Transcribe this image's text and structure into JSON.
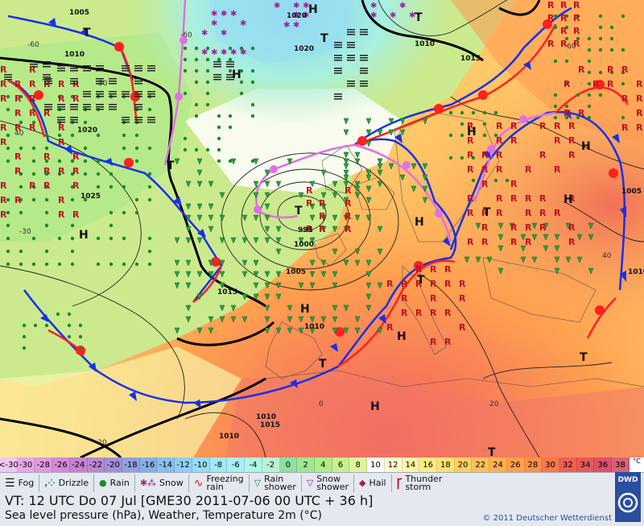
{
  "map": {
    "pressure_labels": [
      {
        "text": "1005"
      },
      {
        "text": "1010"
      },
      {
        "text": "1020"
      },
      {
        "text": "1025"
      },
      {
        "text": "1020"
      },
      {
        "text": "1020"
      },
      {
        "text": "1010"
      },
      {
        "text": "1015"
      },
      {
        "text": "1015"
      },
      {
        "text": "995"
      },
      {
        "text": "1000"
      },
      {
        "text": "1005"
      },
      {
        "text": "1010"
      },
      {
        "text": "1005"
      },
      {
        "text": "1010"
      },
      {
        "text": "1015"
      },
      {
        "text": "1010"
      },
      {
        "text": "1010"
      }
    ],
    "temp_labels": [
      "-60",
      "50",
      "40",
      "-30",
      "-20",
      "0",
      "20",
      "40",
      "60",
      "-60"
    ],
    "highs": [
      "H",
      "H",
      "H",
      "H",
      "H",
      "H",
      "H",
      "H",
      "H",
      "H"
    ],
    "lows": [
      "T",
      "T",
      "T",
      "T",
      "T",
      "T",
      "T",
      "T",
      "T",
      "T"
    ]
  },
  "scale": {
    "unit": "°C",
    "cells": [
      {
        "label": "<-30",
        "color": "#f0c8f0"
      },
      {
        "label": "-30",
        "color": "#e8a8e8"
      },
      {
        "label": "-28",
        "color": "#e098e0"
      },
      {
        "label": "-26",
        "color": "#d888d8"
      },
      {
        "label": "-24",
        "color": "#c880d0"
      },
      {
        "label": "-22",
        "color": "#b888d0"
      },
      {
        "label": "-20",
        "color": "#a090d8"
      },
      {
        "label": "-18",
        "color": "#90a0e0"
      },
      {
        "label": "-16",
        "color": "#88b0e8"
      },
      {
        "label": "-14",
        "color": "#88c0f0"
      },
      {
        "label": "-12",
        "color": "#90d0f4"
      },
      {
        "label": "-10",
        "color": "#98dcf8"
      },
      {
        "label": "-8",
        "color": "#a0e8f8"
      },
      {
        "label": "-6",
        "color": "#a8f0f0"
      },
      {
        "label": "-4",
        "color": "#b0f4e4"
      },
      {
        "label": "-2",
        "color": "#b8f4d4"
      },
      {
        "label": "0",
        "color": "#90e0a0"
      },
      {
        "label": "2",
        "color": "#a0e890"
      },
      {
        "label": "4",
        "color": "#b0ec88"
      },
      {
        "label": "6",
        "color": "#c8f090"
      },
      {
        "label": "8",
        "color": "#e0f4a0"
      },
      {
        "label": "10",
        "color": "#ffffff"
      },
      {
        "label": "12",
        "color": "#fffcd0"
      },
      {
        "label": "14",
        "color": "#fff4a8"
      },
      {
        "label": "16",
        "color": "#ffec88"
      },
      {
        "label": "18",
        "color": "#ffe070"
      },
      {
        "label": "20",
        "color": "#ffd060"
      },
      {
        "label": "22",
        "color": "#ffc058"
      },
      {
        "label": "24",
        "color": "#ffb050"
      },
      {
        "label": "26",
        "color": "#ffa048"
      },
      {
        "label": "28",
        "color": "#ff9048"
      },
      {
        "label": "30",
        "color": "#f87848"
      },
      {
        "label": "32",
        "color": "#f06050"
      },
      {
        "label": "34",
        "color": "#e85858"
      },
      {
        "label": "36",
        "color": "#e05068"
      },
      {
        "label": "38",
        "color": "#d86078"
      }
    ]
  },
  "legend": {
    "fog": "Fog",
    "drizzle": "Drizzle",
    "rain": "Rain",
    "snow": "Snow",
    "freezing_rain": "Freezing\nrain",
    "rain_shower": "Rain\nshower",
    "snow_shower": "Snow\nshower",
    "hail": "Hail",
    "thunderstorm": "Thunder\nstorm"
  },
  "info": {
    "vt_line": "VT: 12 UTC Do  07 Jul [GME30 2011-07-06  00 UTC + 36 h]",
    "subtitle": "Sea level pressure (hPa), Weather, Temperature 2m (°C)",
    "copyright": "© 2011 Deutscher Wetterdienst",
    "logo_text": "DWD"
  },
  "colors": {
    "warm_front": "#ff2020",
    "cold_front": "#1830e8",
    "occlusion": "#e070e8",
    "isobar": "#202020"
  }
}
